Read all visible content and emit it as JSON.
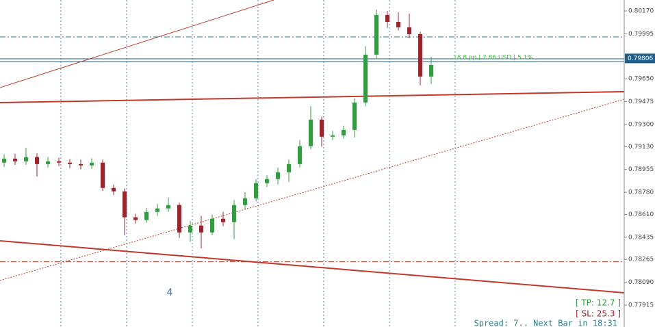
{
  "chart_data": {
    "type": "candlestick",
    "ylim": [
      0.77747,
      0.80254
    ],
    "yticks": [
      {
        "value": 0.8017,
        "label": "0.80170"
      },
      0.79995,
      {
        "value": 0.7965,
        "label": "0.79650"
      },
      0.79475,
      {
        "value": 0.793,
        "label": "0.79300"
      },
      {
        "value": 0.7913,
        "label": "0.79130"
      },
      0.78955,
      {
        "value": 0.7878,
        "label": "0.78780"
      },
      {
        "value": 0.7861,
        "label": "0.78610"
      },
      0.78435,
      0.78265,
      {
        "value": 0.7809,
        "label": "0.78090"
      },
      0.77915
    ],
    "up_color": "#2e9e3e",
    "down_color": "#a3202b",
    "open": [
      0.79007,
      0.79038,
      0.79017,
      0.79049,
      0.78996,
      0.79017,
      0.79007,
      0.78996,
      0.78986,
      0.79007,
      0.78813,
      0.78787,
      0.78588,
      0.78567,
      0.78629,
      0.78656,
      0.78682,
      0.78472,
      0.78525,
      0.78472,
      0.78577,
      0.78551,
      0.78682,
      0.78734,
      0.7885,
      0.78881,
      0.78933,
      0.78996,
      0.79133,
      0.79337,
      0.79206,
      0.79216,
      0.79258,
      0.79468,
      0.79835,
      0.80139,
      0.80086,
      0.80044,
      0.79992,
      0.79667
    ],
    "high": [
      0.7907,
      0.79075,
      0.7912,
      0.7908,
      0.7905,
      0.79045,
      0.79035,
      0.7903,
      0.7904,
      0.7903,
      0.7884,
      0.7881,
      0.78615,
      0.7866,
      0.7869,
      0.7874,
      0.787,
      0.7856,
      0.786,
      0.7861,
      0.7863,
      0.7872,
      0.7878,
      0.7888,
      0.7891,
      0.7897,
      0.7903,
      0.7918,
      0.7944,
      0.7936,
      0.7925,
      0.7929,
      0.795,
      0.799,
      0.8018,
      0.8017,
      0.8016,
      0.8015,
      0.8001,
      0.7982
    ],
    "low": [
      0.78975,
      0.7899,
      0.7899,
      0.789,
      0.7897,
      0.7898,
      0.78965,
      0.78955,
      0.7896,
      0.7879,
      0.7876,
      0.7845,
      0.7854,
      0.78545,
      0.786,
      0.7863,
      0.7843,
      0.784,
      0.7835,
      0.7845,
      0.7852,
      0.7842,
      0.7865,
      0.7871,
      0.7882,
      0.7884,
      0.7886,
      0.7897,
      0.7911,
      0.7913,
      0.7918,
      0.7919,
      0.792,
      0.7944,
      0.798,
      0.8004,
      0.8002,
      0.7996,
      0.796,
      0.7961
    ],
    "close": [
      0.79038,
      0.79017,
      0.79049,
      0.78996,
      0.79017,
      0.79007,
      0.78996,
      0.78986,
      0.79007,
      0.78813,
      0.78787,
      0.78588,
      0.78567,
      0.78629,
      0.78656,
      0.78682,
      0.78472,
      0.78525,
      0.78472,
      0.78577,
      0.78551,
      0.78682,
      0.78734,
      0.7885,
      0.78881,
      0.78933,
      0.78996,
      0.79133,
      0.79337,
      0.79206,
      0.79216,
      0.79258,
      0.79468,
      0.79835,
      0.80139,
      0.80086,
      0.80044,
      0.79992,
      0.79667,
      0.79756
    ],
    "levels": [
      {
        "value": 0.79971,
        "color": "#2e7d8c",
        "style": "dashdot"
      },
      {
        "value": 0.79803,
        "color": "#1f5f8b",
        "style": "solid"
      },
      {
        "value": 0.79782,
        "color": "#1f5f8b",
        "style": "solid"
      },
      {
        "value": 0.78247,
        "color": "#c0392b",
        "style": "dashdot"
      }
    ],
    "current_price": {
      "value": 0.79806,
      "label": "0.79806",
      "color": "#1f5f8b"
    },
    "annotations": {
      "position_info": "18.8 pp | 7.86 USD | 5.1%",
      "wave_label": "4",
      "take_profit": "[ TP: 12.7 ]",
      "stop_loss": "[ SL: 25.3 ]",
      "status": "Spread: 7.. Next Bar in 18:31"
    }
  }
}
